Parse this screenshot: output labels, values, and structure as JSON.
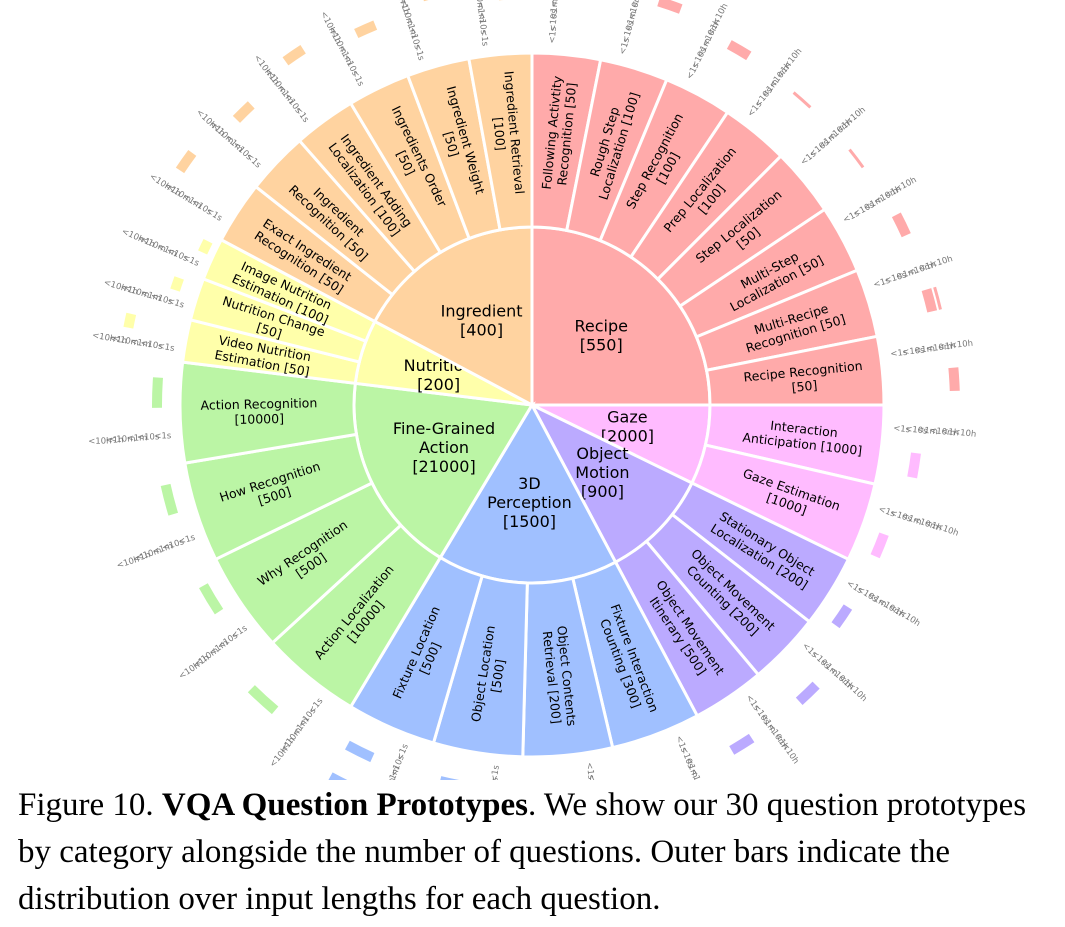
{
  "chart_data": {
    "type": "sunburst",
    "length_bins": [
      "<1s",
      "<10s",
      "<1m",
      "<10m",
      "<1h",
      "<10h"
    ],
    "categories": [
      {
        "name": "Recipe",
        "count": "[550]",
        "color": "#ffaaaa",
        "sub": [
          {
            "name": "Following Activtity\nRecognition [50]",
            "count": 50,
            "len": [
              0,
              0,
              0,
              0,
              0,
              1
            ]
          },
          {
            "name": "Rough Step\nLocalization [100]",
            "count": 100,
            "len": [
              0,
              0,
              0,
              0,
              0,
              1
            ]
          },
          {
            "name": "Step Recognition\n[100]",
            "count": 100,
            "len": [
              0,
              0,
              0,
              0,
              1,
              0
            ]
          },
          {
            "name": "Prep Localization\n[100]",
            "count": 100,
            "len": [
              0,
              0,
              0,
              0,
              0.1,
              0
            ]
          },
          {
            "name": "Step Localization\n[50]",
            "count": 50,
            "len": [
              0,
              0,
              0,
              0,
              0.1,
              0
            ]
          },
          {
            "name": "Multi-Step\nLocalization [50]",
            "count": 50,
            "len": [
              0,
              0,
              0,
              0,
              1,
              0
            ]
          },
          {
            "name": "Multi-Recipe\nRecognition [50]",
            "count": 50,
            "len": [
              0,
              0,
              0,
              0,
              1,
              0.1
            ]
          },
          {
            "name": "Recipe Recognition\n[50]",
            "count": 50,
            "len": [
              0,
              0,
              0,
              0,
              0,
              1
            ]
          }
        ]
      },
      {
        "name": "Gaze",
        "count": "[2000]",
        "color": "#ffbbff",
        "sub": [
          {
            "name": "Interaction\nAnticipation [1000]",
            "count": 1000,
            "len": [
              0,
              0,
              1,
              0,
              0,
              0
            ]
          },
          {
            "name": "Gaze Estimation\n[1000]",
            "count": 1000,
            "len": [
              0,
              1,
              0,
              0,
              0,
              0
            ]
          }
        ]
      },
      {
        "name": "Object\nMotion",
        "count": "[900]",
        "color": "#bbaaff",
        "sub": [
          {
            "name": "Stationary Object\nLocalization [200]",
            "count": 200,
            "len": [
              0,
              1,
              0,
              0,
              0,
              0
            ]
          },
          {
            "name": "Object Movement\nCounting [200]",
            "count": 200,
            "len": [
              0,
              0,
              0,
              1,
              0,
              0
            ]
          },
          {
            "name": "Object Movement\nItinerary [500]",
            "count": 500,
            "len": [
              0,
              0,
              0,
              1,
              0,
              0
            ]
          }
        ]
      },
      {
        "name": "3D\nPerception",
        "count": "[1500]",
        "color": "#a0c0ff",
        "sub": [
          {
            "name": "Fixture Interaction\nCounting [300]",
            "count": 300,
            "len": [
              0,
              0,
              0,
              0,
              1,
              1
            ]
          },
          {
            "name": "Object Contents\nRetrieval [200]",
            "count": 200,
            "len": [
              0,
              0,
              0,
              1,
              1,
              0
            ]
          },
          {
            "name": "Object Location\n[500]",
            "count": 500,
            "len": [
              0,
              0,
              1,
              1,
              0,
              0
            ]
          },
          {
            "name": "Fixture Location\n[500]",
            "count": 500,
            "len": [
              0,
              0,
              1,
              0,
              0,
              1
            ]
          }
        ]
      },
      {
        "name": "Fine-Grained\nAction",
        "count": "[21000]",
        "color": "#bbf5a5",
        "sub": [
          {
            "name": "Action Localization\n[10000]",
            "count": 10000,
            "len": [
              0,
              0,
              0,
              1,
              0,
              0
            ]
          },
          {
            "name": "Why Recognition\n[500]",
            "count": 500,
            "len": [
              0,
              1,
              0,
              0,
              0,
              0
            ]
          },
          {
            "name": "How Recognition\n[500]",
            "count": 500,
            "len": [
              0,
              1,
              0,
              0,
              0,
              0
            ]
          },
          {
            "name": "Action Recognition\n[10000]",
            "count": 10000,
            "len": [
              0,
              1,
              0,
              0,
              0,
              0
            ]
          }
        ]
      },
      {
        "name": "Nutrition",
        "count": "[200]",
        "color": "#ffffaa",
        "sub": [
          {
            "name": "Video Nutrition\nEstimation [50]",
            "count": 50,
            "len": [
              0,
              0,
              0,
              0,
              1,
              0
            ]
          },
          {
            "name": "Nutrition Change\n[50]",
            "count": 50,
            "len": [
              0,
              1,
              0,
              0,
              0,
              0
            ]
          },
          {
            "name": "Image Nutrition\nEstimation [100]",
            "count": 100,
            "len": [
              1,
              0,
              0,
              0,
              0,
              0
            ]
          }
        ]
      },
      {
        "name": "Ingredient",
        "count": "[400]",
        "color": "#ffd3a0",
        "sub": [
          {
            "name": "Exact Ingredient\nRecognition [50]",
            "count": 50,
            "len": [
              0,
              0,
              0,
              0,
              0,
              1
            ]
          },
          {
            "name": "Ingredient\nRecognition [50]",
            "count": 50,
            "len": [
              0,
              0,
              0,
              0,
              1,
              0
            ]
          },
          {
            "name": "Ingredient Adding\nLocalization [100]",
            "count": 100,
            "len": [
              0,
              0,
              0,
              0,
              0,
              1
            ]
          },
          {
            "name": "Ingredients Order\n[50]",
            "count": 50,
            "len": [
              0,
              0,
              0,
              0,
              1,
              0
            ]
          },
          {
            "name": "Ingredient Weight\n[50]",
            "count": 50,
            "len": [
              0,
              0,
              0,
              0,
              0,
              1
            ]
          },
          {
            "name": "Ingredient Retrieval\n[100]",
            "count": 100,
            "len": [
              0,
              0,
              0,
              0,
              1,
              0
            ]
          }
        ]
      }
    ]
  },
  "caption": {
    "prefix": "Figure 10. ",
    "title": "VQA Question Prototypes",
    "body": ". We show our 30 question prototypes by category alongside the number of questions. Outer bars indicate the distribution over input lengths for each question."
  }
}
